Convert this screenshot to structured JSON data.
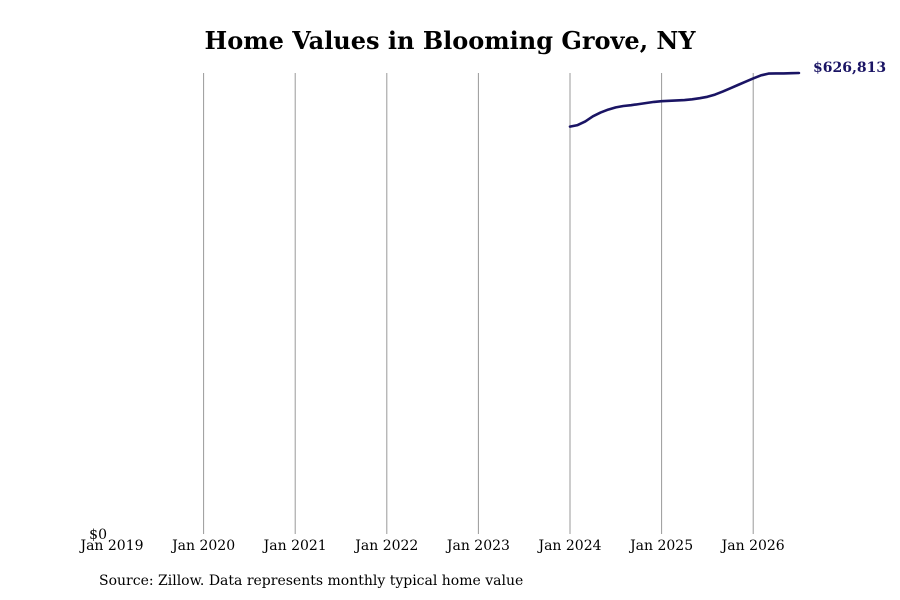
{
  "chart_data": {
    "type": "line",
    "title": "Home Values in Blooming Grove, NY",
    "xlabel": "",
    "ylabel": "",
    "x_tick_labels": [
      "Jan 2019",
      "Jan 2020",
      "Jan 2021",
      "Jan 2022",
      "Jan 2023",
      "Jan 2024",
      "Jan 2025",
      "Jan 2026"
    ],
    "y_tick_labels": [
      "$0"
    ],
    "xlim": [
      "2019-01",
      "2026-07"
    ],
    "ylim": [
      0,
      626813
    ],
    "grid": "vertical",
    "series": [
      {
        "color": "#1a1464",
        "points": [
          {
            "x": "2024-01",
            "y": 554000
          },
          {
            "x": "2024-02",
            "y": 556000
          },
          {
            "x": "2024-03",
            "y": 561000
          },
          {
            "x": "2024-04",
            "y": 568000
          },
          {
            "x": "2024-05",
            "y": 573000
          },
          {
            "x": "2024-06",
            "y": 577000
          },
          {
            "x": "2024-07",
            "y": 580000
          },
          {
            "x": "2024-08",
            "y": 582000
          },
          {
            "x": "2024-09",
            "y": 583000
          },
          {
            "x": "2024-10",
            "y": 584500
          },
          {
            "x": "2024-11",
            "y": 586000
          },
          {
            "x": "2024-12",
            "y": 587500
          },
          {
            "x": "2025-01",
            "y": 588500
          },
          {
            "x": "2025-02",
            "y": 589000
          },
          {
            "x": "2025-03",
            "y": 589500
          },
          {
            "x": "2025-04",
            "y": 590000
          },
          {
            "x": "2025-05",
            "y": 591000
          },
          {
            "x": "2025-06",
            "y": 592500
          },
          {
            "x": "2025-07",
            "y": 594500
          },
          {
            "x": "2025-08",
            "y": 597500
          },
          {
            "x": "2025-09",
            "y": 601500
          },
          {
            "x": "2025-10",
            "y": 606000
          },
          {
            "x": "2025-11",
            "y": 610500
          },
          {
            "x": "2025-12",
            "y": 615000
          },
          {
            "x": "2026-01",
            "y": 619500
          },
          {
            "x": "2026-02",
            "y": 623500
          },
          {
            "x": "2026-03",
            "y": 626000
          },
          {
            "x": "2026-04",
            "y": 626300
          },
          {
            "x": "2026-05",
            "y": 626300
          },
          {
            "x": "2026-06",
            "y": 626500
          },
          {
            "x": "2026-07",
            "y": 626813
          }
        ]
      }
    ],
    "end_label": "$626,813",
    "source": "Source: Zillow. Data represents monthly typical home value"
  },
  "colors": {
    "line": "#1a1464",
    "grid": "#999999",
    "text": "#000000"
  }
}
